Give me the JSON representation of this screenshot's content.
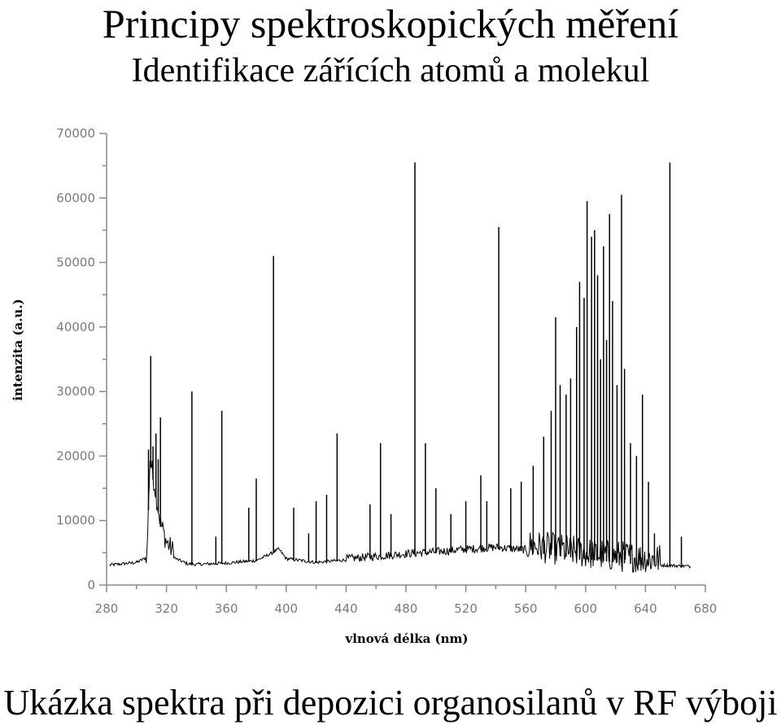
{
  "header": {
    "title": "Principy spektroskopických měření",
    "subtitle": "Identifikace zářících atomů a molekul"
  },
  "caption": "Ukázka spektra při depozici organosilanů v RF výboji",
  "chart_data": {
    "type": "line",
    "xlabel": "vlnová délka (nm)",
    "ylabel": "intenzita (a.u.)",
    "xlim": [
      280,
      680
    ],
    "ylim": [
      0,
      70000
    ],
    "x_ticks": [
      280,
      320,
      360,
      400,
      440,
      480,
      520,
      560,
      600,
      640,
      680
    ],
    "y_ticks": [
      0,
      10000,
      20000,
      30000,
      40000,
      50000,
      60000,
      70000
    ],
    "grid": false,
    "color": "#000000",
    "x_range_shown": [
      282,
      670
    ],
    "baseline": [
      [
        282,
        3000
      ],
      [
        300,
        3400
      ],
      [
        307,
        4200
      ],
      [
        309,
        19000
      ],
      [
        312,
        15000
      ],
      [
        316,
        9000
      ],
      [
        320,
        6000
      ],
      [
        326,
        4000
      ],
      [
        334,
        3200
      ],
      [
        340,
        3100
      ],
      [
        360,
        3300
      ],
      [
        380,
        3700
      ],
      [
        390,
        4800
      ],
      [
        395,
        5500
      ],
      [
        400,
        4000
      ],
      [
        420,
        3400
      ],
      [
        440,
        3800
      ],
      [
        460,
        4200
      ],
      [
        480,
        4600
      ],
      [
        500,
        4900
      ],
      [
        520,
        5300
      ],
      [
        540,
        5600
      ],
      [
        560,
        5200
      ],
      [
        580,
        4600
      ],
      [
        600,
        4000
      ],
      [
        620,
        3500
      ],
      [
        640,
        3100
      ],
      [
        660,
        2900
      ],
      [
        670,
        2800
      ]
    ],
    "peaks": [
      [
        308,
        21000
      ],
      [
        309.5,
        35500
      ],
      [
        311,
        21500
      ],
      [
        313,
        23500
      ],
      [
        314.5,
        19500
      ],
      [
        316,
        26000
      ],
      [
        337,
        30000
      ],
      [
        353,
        7500
      ],
      [
        357,
        27000
      ],
      [
        375,
        12000
      ],
      [
        380,
        16500
      ],
      [
        391.5,
        51000
      ],
      [
        405,
        12000
      ],
      [
        415,
        8000
      ],
      [
        420,
        13000
      ],
      [
        427,
        14000
      ],
      [
        434,
        23500
      ],
      [
        456,
        12500
      ],
      [
        463,
        22000
      ],
      [
        470,
        11000
      ],
      [
        486,
        65500
      ],
      [
        493,
        22000
      ],
      [
        500,
        15000
      ],
      [
        510,
        11000
      ],
      [
        520,
        13000
      ],
      [
        530,
        17000
      ],
      [
        534,
        13000
      ],
      [
        542,
        55500
      ],
      [
        550,
        15000
      ],
      [
        557,
        16000
      ],
      [
        565,
        18500
      ],
      [
        572,
        23000
      ],
      [
        577,
        27000
      ],
      [
        580,
        41500
      ],
      [
        583,
        31000
      ],
      [
        587,
        29500
      ],
      [
        590,
        32000
      ],
      [
        594,
        40000
      ],
      [
        596,
        47000
      ],
      [
        599,
        44500
      ],
      [
        601,
        59500
      ],
      [
        604,
        54000
      ],
      [
        606,
        55000
      ],
      [
        608,
        48000
      ],
      [
        610,
        35000
      ],
      [
        612,
        52500
      ],
      [
        614,
        38000
      ],
      [
        616,
        57500
      ],
      [
        618,
        44000
      ],
      [
        621,
        31000
      ],
      [
        624,
        60500
      ],
      [
        626,
        33500
      ],
      [
        630,
        22000
      ],
      [
        634,
        20000
      ],
      [
        638,
        29500
      ],
      [
        642,
        16000
      ],
      [
        646,
        8000
      ],
      [
        656.3,
        65500
      ],
      [
        664,
        7500
      ]
    ]
  }
}
